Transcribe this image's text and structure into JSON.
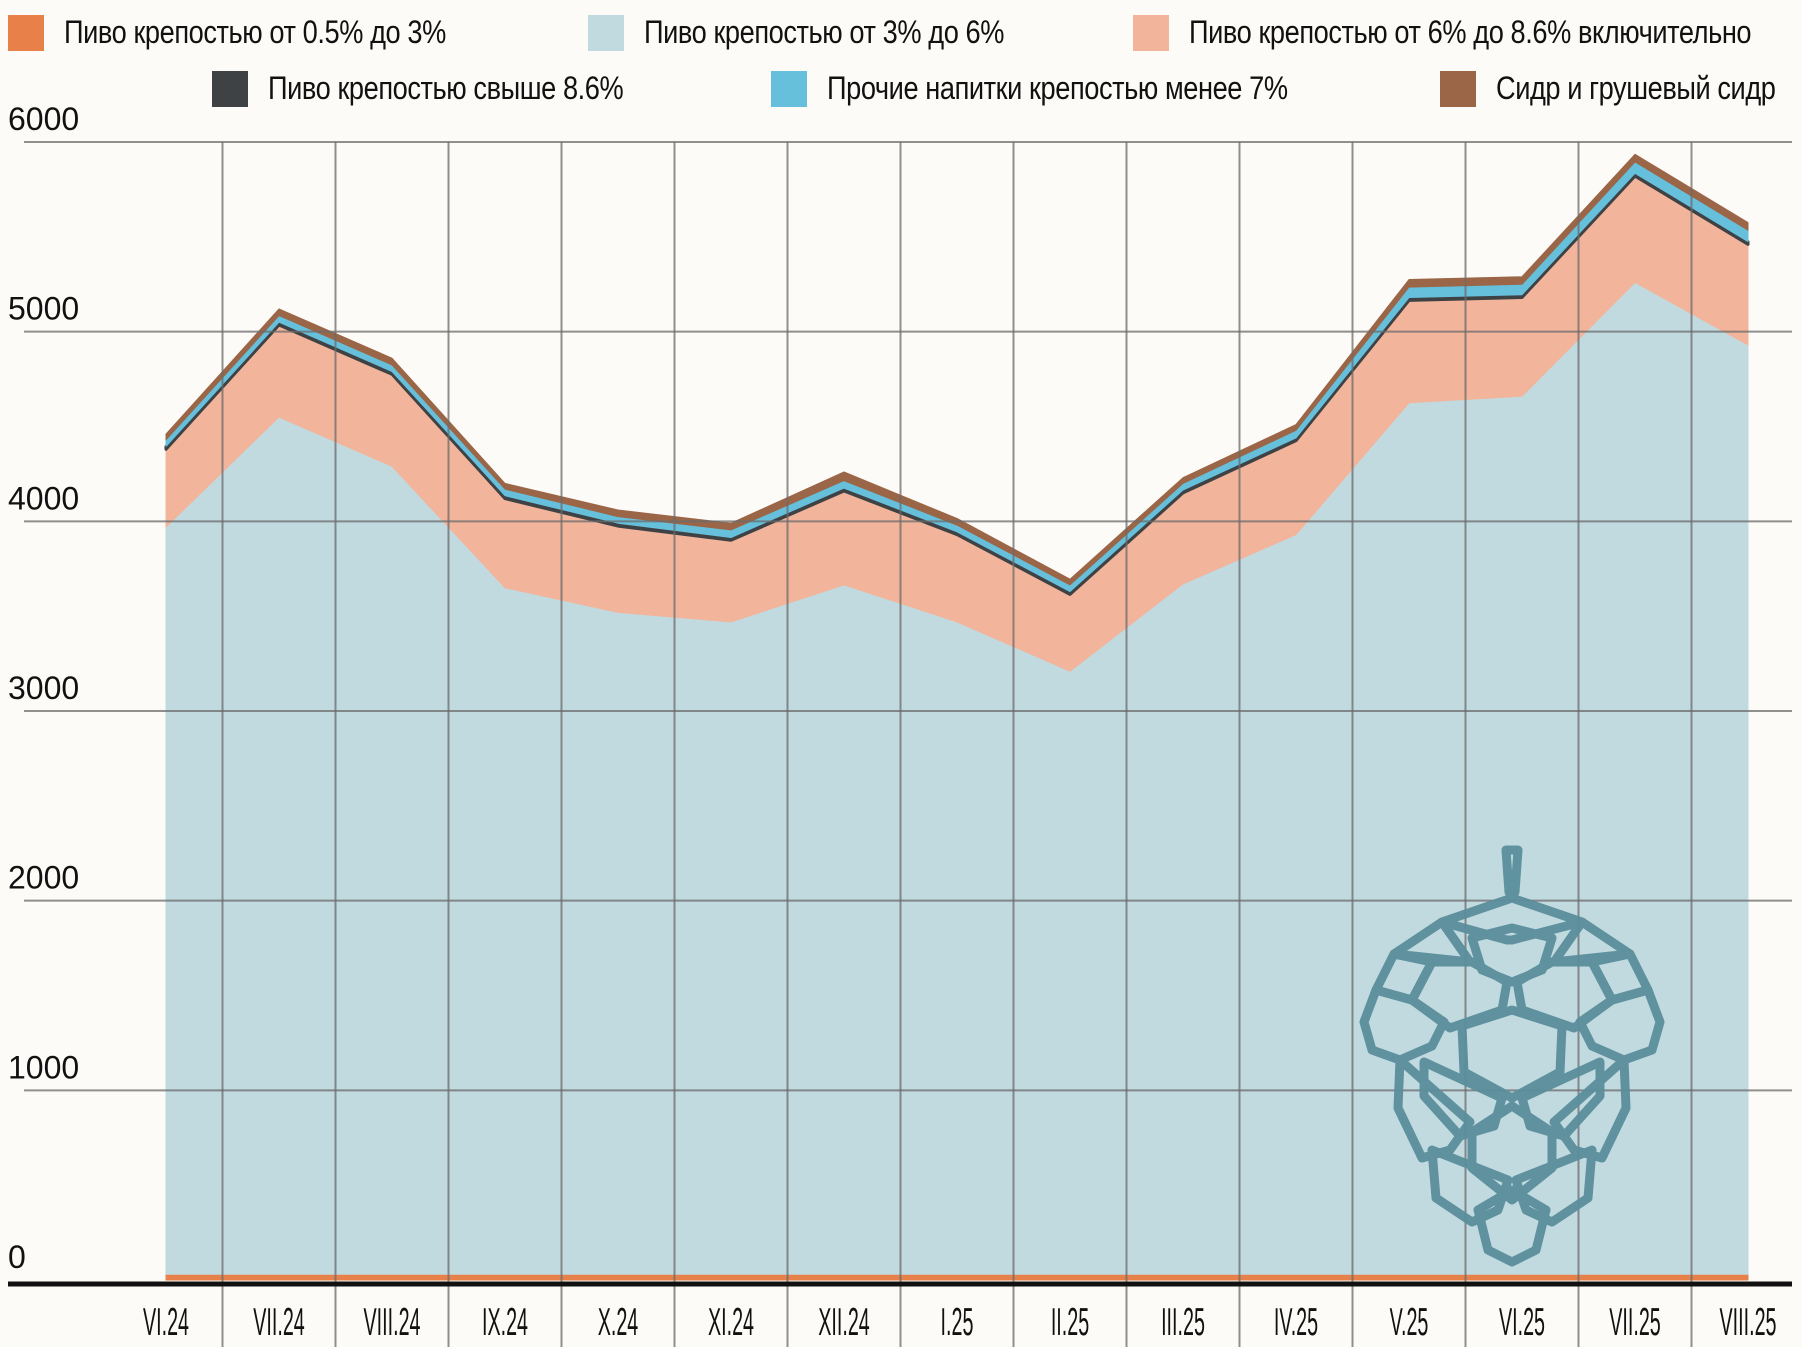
{
  "legend": [
    {
      "label": "Пиво крепостью от 0.5% до 3%",
      "color": "#e8804a"
    },
    {
      "label": "Пиво крепостью от 3% до 6%",
      "color": "#c1dae0"
    },
    {
      "label": "Пиво крепостью от 6% до 8.6% включительно",
      "color": "#f2b49a"
    },
    {
      "label": "Пиво крепостью свыше 8.6%",
      "color": "#3f4244"
    },
    {
      "label": "Прочие напитки крепостью менее 7%",
      "color": "#66c0dc"
    },
    {
      "label": "Сидр и грушевый сидр",
      "color": "#9a6647"
    }
  ],
  "chart_data": {
    "type": "area",
    "stacked": true,
    "title": "",
    "xlabel": "",
    "ylabel": "",
    "ylim": [
      0,
      6000
    ],
    "yticks": [
      0,
      1000,
      2000,
      3000,
      4000,
      5000,
      6000
    ],
    "grid": true,
    "legend_position": "top",
    "categories": [
      "VI.24",
      "VII.24",
      "VIII.24",
      "IX.24",
      "X.24",
      "XI.24",
      "XII.24",
      "I.25",
      "II.25",
      "III.25",
      "IV.25",
      "V.25",
      "VI.25",
      "VII.25",
      "VIII.25"
    ],
    "series": [
      {
        "name": "Пиво крепостью от 0.5% до 3%",
        "color": "#e8804a",
        "values": [
          30,
          30,
          30,
          30,
          30,
          30,
          30,
          30,
          30,
          30,
          30,
          30,
          30,
          30,
          30
        ]
      },
      {
        "name": "Пиво крепостью от 3% до 6%",
        "color": "#c1dae0",
        "values": [
          3940,
          4520,
          4260,
          3620,
          3490,
          3440,
          3635,
          3440,
          3180,
          3640,
          3900,
          4595,
          4630,
          5230,
          4900
        ]
      },
      {
        "name": "Пиво крепостью от 6% до 8.6% включительно",
        "color": "#f2b49a",
        "values": [
          410,
          485,
          485,
          470,
          455,
          430,
          495,
          460,
          405,
          480,
          495,
          540,
          520,
          560,
          530
        ]
      },
      {
        "name": "Пиво крепостью свыше 8.6%",
        "color": "#3f4244",
        "values": [
          15,
          15,
          15,
          15,
          15,
          15,
          15,
          15,
          15,
          15,
          15,
          15,
          15,
          15,
          15
        ]
      },
      {
        "name": "Прочие напитки крепостью менее 7%",
        "color": "#66c0dc",
        "values": [
          35,
          35,
          35,
          35,
          35,
          40,
          40,
          35,
          35,
          35,
          40,
          55,
          55,
          60,
          60
        ]
      },
      {
        "name": "Сидр и грушевый сидр",
        "color": "#9a6647",
        "values": [
          30,
          35,
          35,
          30,
          35,
          35,
          45,
          35,
          30,
          30,
          30,
          40,
          40,
          40,
          40
        ]
      }
    ]
  },
  "decoration": {
    "icon": "hop-cone-icon",
    "color": "#5a8f9b"
  }
}
